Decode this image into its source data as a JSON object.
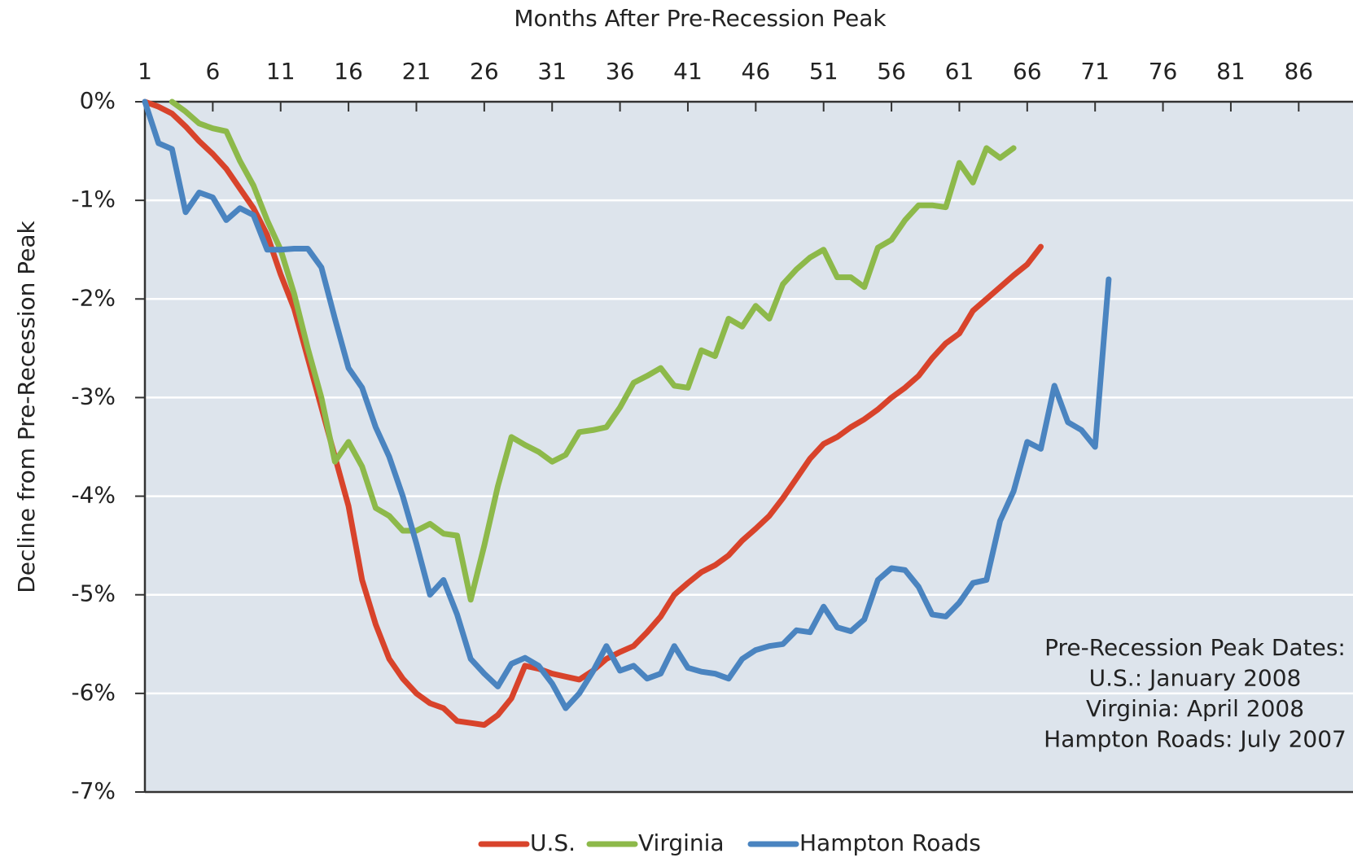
{
  "chart_data": {
    "type": "line",
    "title": "Months After Pre-Recession Peak",
    "y_label": "Decline from Pre-Recession Peak",
    "annotation": [
      "Pre-Recession Peak Dates:",
      "U.S.: January 2008",
      "Virginia: April 2008",
      "Hampton Roads: July 2007"
    ],
    "x": [
      1,
      2,
      3,
      4,
      5,
      6,
      7,
      8,
      9,
      10,
      11,
      12,
      13,
      14,
      15,
      16,
      17,
      18,
      19,
      20,
      21,
      22,
      23,
      24,
      25,
      26,
      27,
      28,
      29,
      30,
      31,
      32,
      33,
      34,
      35,
      36,
      37,
      38,
      39,
      40,
      41,
      42,
      43,
      44,
      45,
      46,
      47,
      48,
      49,
      50,
      51,
      52,
      53,
      54,
      55,
      56,
      57,
      58,
      59,
      60,
      61,
      62,
      63,
      64,
      65,
      66,
      67,
      68,
      69,
      70,
      71,
      72
    ],
    "series": [
      {
        "name": "U.S.",
        "color": "#d8432b",
        "values": [
          0,
          -0.05,
          -0.12,
          -0.25,
          -0.4,
          -0.53,
          -0.68,
          -0.88,
          -1.08,
          -1.35,
          -1.75,
          -2.1,
          -2.6,
          -3.1,
          -3.6,
          -4.1,
          -4.85,
          -5.3,
          -5.65,
          -5.85,
          -6.0,
          -6.1,
          -6.15,
          -6.28,
          -6.3,
          -6.32,
          -6.22,
          -6.05,
          -5.72,
          -5.75,
          -5.8,
          -5.83,
          -5.86,
          -5.77,
          -5.65,
          -5.58,
          -5.52,
          -5.38,
          -5.22,
          -5.0,
          -4.88,
          -4.77,
          -4.7,
          -4.6,
          -4.45,
          -4.33,
          -4.2,
          -4.02,
          -3.82,
          -3.62,
          -3.47,
          -3.4,
          -3.3,
          -3.22,
          -3.12,
          -3.0,
          -2.9,
          -2.78,
          -2.6,
          -2.45,
          -2.35,
          -2.12,
          -2.0,
          -1.88,
          -1.76,
          -1.65,
          -1.47,
          null,
          null,
          null,
          null,
          null
        ]
      },
      {
        "name": "Virginia",
        "color": "#8db94a",
        "values": [
          null,
          null,
          0,
          -0.1,
          -0.22,
          -0.27,
          -0.3,
          -0.6,
          -0.85,
          -1.2,
          -1.5,
          -1.95,
          -2.5,
          -3.0,
          -3.65,
          -3.45,
          -3.7,
          -4.12,
          -4.2,
          -4.35,
          -4.35,
          -4.28,
          -4.38,
          -4.4,
          -5.05,
          -4.5,
          -3.9,
          -3.4,
          -3.48,
          -3.55,
          -3.65,
          -3.58,
          -3.35,
          -3.33,
          -3.3,
          -3.1,
          -2.85,
          -2.78,
          -2.7,
          -2.88,
          -2.9,
          -2.52,
          -2.58,
          -2.2,
          -2.28,
          -2.07,
          -2.2,
          -1.85,
          -1.7,
          -1.58,
          -1.5,
          -1.78,
          -1.78,
          -1.88,
          -1.48,
          -1.4,
          -1.2,
          -1.05,
          -1.05,
          -1.07,
          -0.62,
          -0.82,
          -0.47,
          -0.57,
          -0.47,
          null,
          null,
          null,
          null,
          null,
          null,
          null
        ]
      },
      {
        "name": "Hampton Roads",
        "color": "#4a84c0",
        "values": [
          0,
          -0.42,
          -0.48,
          -1.12,
          -0.92,
          -0.97,
          -1.2,
          -1.08,
          -1.15,
          -1.5,
          -1.5,
          -1.49,
          -1.49,
          -1.68,
          -2.2,
          -2.7,
          -2.9,
          -3.3,
          -3.6,
          -4.0,
          -4.48,
          -5.0,
          -4.85,
          -5.2,
          -5.65,
          -5.8,
          -5.93,
          -5.7,
          -5.64,
          -5.72,
          -5.9,
          -6.15,
          -6.0,
          -5.78,
          -5.52,
          -5.77,
          -5.72,
          -5.85,
          -5.8,
          -5.52,
          -5.74,
          -5.78,
          -5.8,
          -5.85,
          -5.65,
          -5.56,
          -5.52,
          -5.5,
          -5.36,
          -5.38,
          -5.12,
          -5.33,
          -5.37,
          -5.25,
          -4.85,
          -4.73,
          -4.75,
          -4.92,
          -5.2,
          -5.22,
          -5.08,
          -4.88,
          -4.85,
          -4.25,
          -3.95,
          -3.45,
          -3.52,
          -2.88,
          -3.25,
          -3.33,
          -3.5,
          -1.8
        ]
      }
    ],
    "xlim": [
      1,
      90
    ],
    "xticks": [
      1,
      6,
      11,
      16,
      21,
      26,
      31,
      36,
      41,
      46,
      51,
      56,
      61,
      66,
      71,
      76,
      81,
      86
    ],
    "ylim": [
      -7,
      0
    ],
    "yticks": [
      {
        "value": 0,
        "label": "0%"
      },
      {
        "value": -1,
        "label": "-1%"
      },
      {
        "value": -2,
        "label": "-2%"
      },
      {
        "value": -3,
        "label": "-3%"
      },
      {
        "value": -4,
        "label": "-4%"
      },
      {
        "value": -5,
        "label": "-5%"
      },
      {
        "value": -6,
        "label": "-6%"
      },
      {
        "value": -7,
        "label": "-7%"
      }
    ],
    "x_axis_position": "top",
    "grid": true,
    "legend": "bottom"
  }
}
